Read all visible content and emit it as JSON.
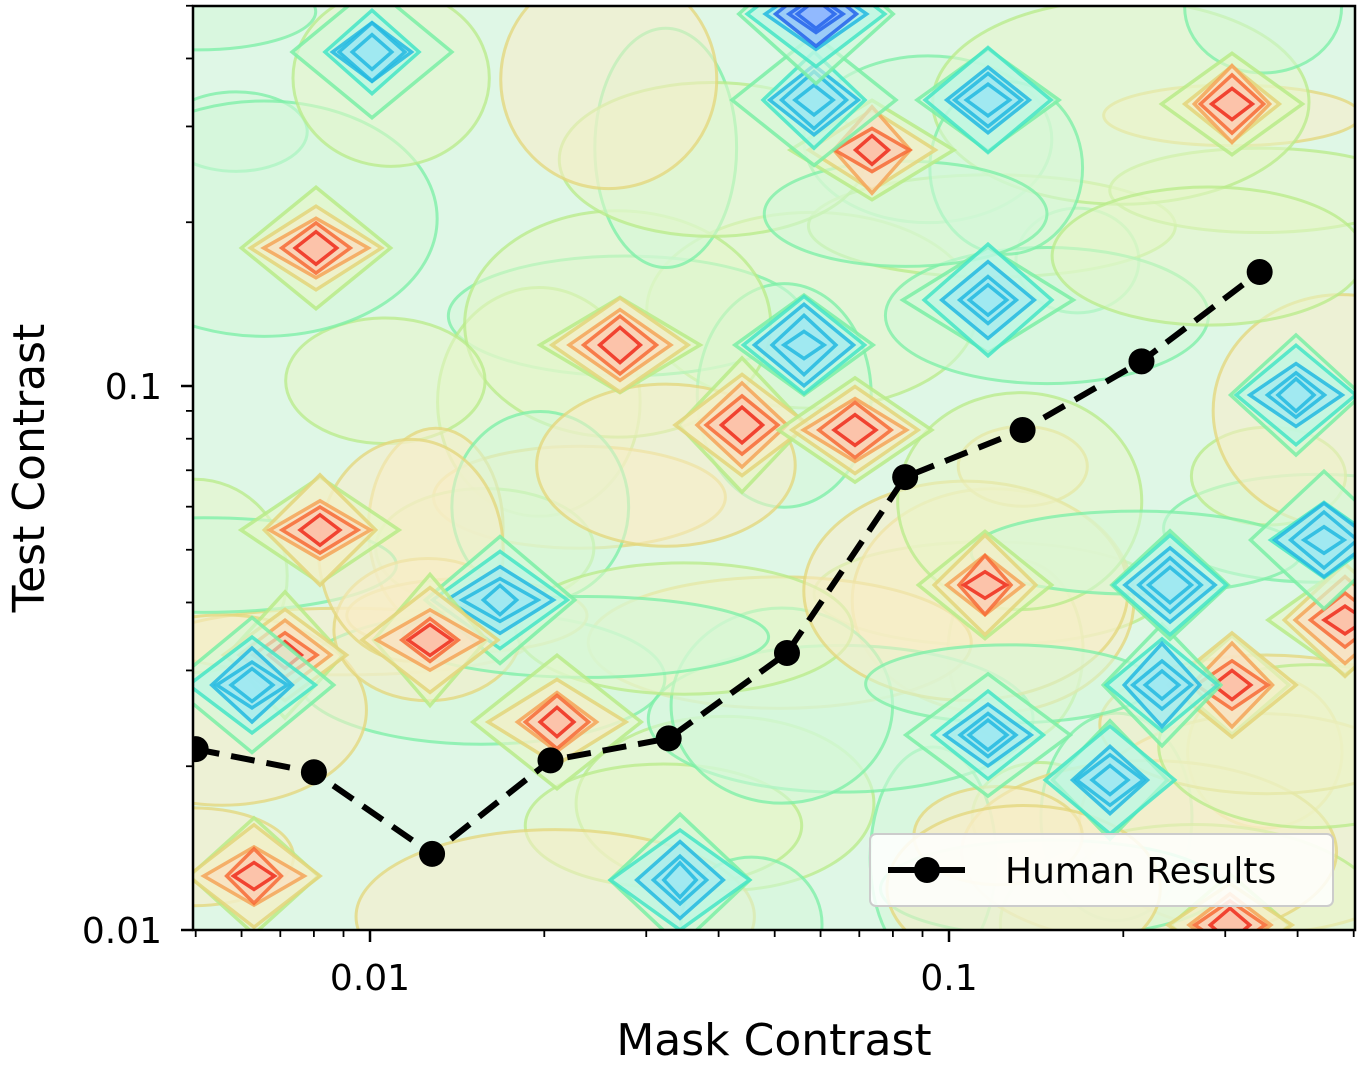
{
  "chart_data": {
    "type": "line",
    "xlabel": "Mask Contrast",
    "ylabel": "Test Contrast",
    "x_scale": "log",
    "y_scale": "log",
    "xlim": [
      0.005,
      0.5
    ],
    "ylim": [
      0.01,
      0.5
    ],
    "x_ticks": [
      {
        "value": 0.01,
        "label": "0.01"
      },
      {
        "value": 0.1,
        "label": "0.1"
      }
    ],
    "y_ticks": [
      {
        "value": 0.01,
        "label": "0.01"
      },
      {
        "value": 0.1,
        "label": "0.1"
      }
    ],
    "legend_position": "bottom-right",
    "background": "contour heatmap (rainbow colormap) in plot area",
    "series": [
      {
        "name": "Human Results",
        "style": "dashed line with circle markers",
        "color": "#000000",
        "x": [
          0.005,
          0.008,
          0.0128,
          0.0205,
          0.0328,
          0.0525,
          0.084,
          0.134,
          0.215,
          0.344
        ],
        "y": [
          0.0215,
          0.0195,
          0.0138,
          0.0205,
          0.0225,
          0.0323,
          0.068,
          0.083,
          0.111,
          0.162
        ]
      }
    ]
  }
}
